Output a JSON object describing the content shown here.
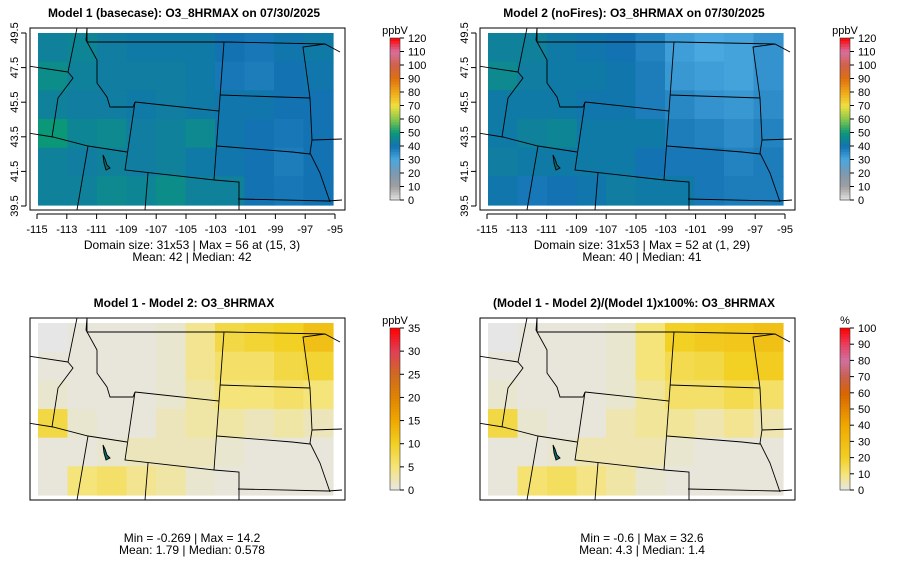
{
  "chart_data": [
    {
      "type": "heatmap",
      "title": "Model 1 (basecase): O3_8HRMAX on 07/30/2025",
      "units": "ppbV",
      "stats_line1": "Domain size: 31x53 | Max = 56 at (15, 3)",
      "stats_line2": "Mean: 42 |  Median: 42",
      "show_axes": true,
      "xlim": [
        -115,
        -95
      ],
      "ylim": [
        39.5,
        49.5
      ],
      "x_ticks": [
        "-115",
        "-113",
        "-111",
        "-109",
        "-107",
        "-105",
        "-103",
        "-101",
        "-99",
        "-97",
        "-95"
      ],
      "y_ticks": [
        "39.5",
        "41.5",
        "43.5",
        "45.5",
        "47.5",
        "49.5"
      ],
      "scale": "ppb",
      "colorbar_range": [
        0,
        120
      ],
      "colorbar_ticks": [
        "0",
        "10",
        "20",
        "30",
        "40",
        "50",
        "60",
        "70",
        "80",
        "90",
        "100",
        "110",
        "120"
      ],
      "grid_approx": [
        [
          44,
          45,
          43,
          42,
          42,
          42,
          40,
          39,
          41,
          42
        ],
        [
          47,
          44,
          43,
          43,
          43,
          42,
          39,
          38,
          40,
          41
        ],
        [
          44,
          43,
          43,
          42,
          43,
          42,
          41,
          41,
          40,
          40
        ],
        [
          50,
          45,
          46,
          43,
          44,
          46,
          41,
          40,
          39,
          40
        ],
        [
          44,
          43,
          44,
          43,
          44,
          42,
          41,
          40,
          38,
          40
        ],
        [
          44,
          44,
          46,
          45,
          47,
          44,
          44,
          40,
          39,
          40
        ]
      ]
    },
    {
      "type": "heatmap",
      "title": "Model 2 (noFires): O3_8HRMAX on 07/30/2025",
      "units": "ppbV",
      "stats_line1": "Domain size: 31x53 | Max = 52 at (1, 29)",
      "stats_line2": "Mean: 40 |  Median: 41",
      "show_axes": true,
      "xlim": [
        -115,
        -95
      ],
      "ylim": [
        39.5,
        49.5
      ],
      "x_ticks": [
        "-115",
        "-113",
        "-111",
        "-109",
        "-107",
        "-105",
        "-103",
        "-101",
        "-99",
        "-97",
        "-95"
      ],
      "y_ticks": [
        "39.5",
        "41.5",
        "43.5",
        "45.5",
        "47.5",
        "49.5"
      ],
      "scale": "ppb",
      "colorbar_range": [
        0,
        120
      ],
      "colorbar_ticks": [
        "0",
        "10",
        "20",
        "30",
        "40",
        "50",
        "60",
        "70",
        "80",
        "90",
        "100",
        "110",
        "120"
      ],
      "grid_approx": [
        [
          44,
          44,
          42,
          41,
          40,
          37,
          32,
          30,
          31,
          34
        ],
        [
          46,
          43,
          42,
          42,
          41,
          38,
          33,
          32,
          31,
          34
        ],
        [
          42,
          42,
          42,
          41,
          41,
          38,
          36,
          34,
          33,
          35
        ],
        [
          42,
          44,
          45,
          42,
          42,
          42,
          38,
          37,
          35,
          37
        ],
        [
          43,
          42,
          42,
          42,
          42,
          40,
          39,
          39,
          37,
          38
        ],
        [
          41,
          39,
          40,
          41,
          43,
          42,
          42,
          39,
          38,
          38
        ]
      ]
    },
    {
      "type": "heatmap",
      "title": "Model 1 - Model 2: O3_8HRMAX",
      "units": "ppbV",
      "stats_line1": "Min = -0.269 | Max = 14.2",
      "stats_line2": "Mean: 1.79 |  Median: 0.578",
      "show_axes": false,
      "xlim": [
        -115,
        -95
      ],
      "ylim": [
        39.5,
        49.5
      ],
      "scale": "diff",
      "colorbar_range": [
        0,
        35
      ],
      "colorbar_ticks": [
        "0",
        "5",
        "10",
        "15",
        "20",
        "25",
        "30",
        "35"
      ],
      "grid_approx": [
        [
          0,
          0.5,
          0.5,
          0.5,
          1,
          4,
          8,
          9,
          10,
          12
        ],
        [
          0.5,
          0.5,
          0.5,
          0.5,
          1,
          4,
          6,
          6,
          8,
          9
        ],
        [
          1,
          0.5,
          0.5,
          0.5,
          1,
          3,
          5,
          5,
          6,
          5
        ],
        [
          8,
          1,
          0.5,
          0.5,
          2,
          3,
          3,
          2,
          3,
          2
        ],
        [
          0.5,
          0.5,
          1,
          2,
          2,
          2,
          1,
          0.5,
          0.5,
          0.5
        ],
        [
          0.5,
          5,
          6,
          4,
          3,
          1,
          0.5,
          0.5,
          0.5,
          0.5
        ]
      ]
    },
    {
      "type": "heatmap",
      "title": "(Model 1 - Model 2)/(Model 1)x100%: O3_8HRMAX",
      "units": "%",
      "stats_line1": "Min = -0.6 | Max = 32.6",
      "stats_line2": "Mean: 4.3 |  Median: 1.4",
      "show_axes": false,
      "xlim": [
        -115,
        -95
      ],
      "ylim": [
        39.5,
        49.5
      ],
      "scale": "pct",
      "colorbar_range": [
        0,
        100
      ],
      "colorbar_ticks": [
        "0",
        "10",
        "20",
        "30",
        "40",
        "50",
        "60",
        "70",
        "80",
        "90",
        "100"
      ],
      "grid_approx": [
        [
          0,
          1,
          1,
          1,
          2,
          10,
          20,
          23,
          25,
          28
        ],
        [
          1,
          1,
          1,
          1,
          2,
          10,
          15,
          16,
          20,
          22
        ],
        [
          2,
          1,
          1,
          1,
          2,
          7,
          12,
          12,
          15,
          12
        ],
        [
          16,
          2,
          1,
          1,
          5,
          7,
          7,
          5,
          8,
          5
        ],
        [
          1,
          1,
          2,
          5,
          5,
          5,
          2,
          1,
          1,
          1
        ],
        [
          1,
          11,
          13,
          9,
          6,
          2,
          1,
          1,
          1,
          1
        ]
      ]
    }
  ]
}
